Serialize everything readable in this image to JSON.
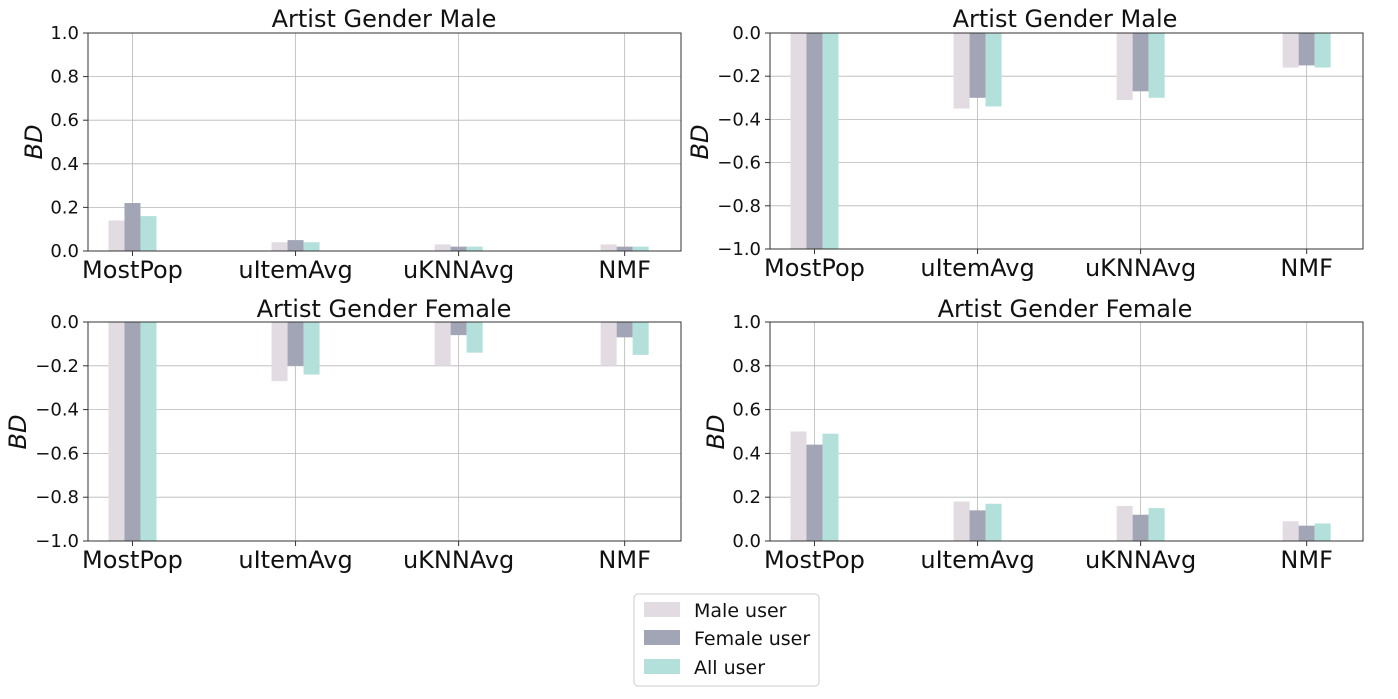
{
  "colors": {
    "male_user": "#e2dbe2",
    "female_user": "#a2a5b5",
    "all_user": "#b3e0da",
    "grid": "#b8b8b8",
    "axes": "#333333"
  },
  "legend": {
    "placement": "bottom-center",
    "entries": [
      "Male user",
      "Female user",
      "All user"
    ]
  },
  "chart_data": [
    {
      "type": "bar",
      "title": "Artist Gender Male",
      "ylabel": "BD",
      "ylim": [
        0,
        1.0
      ],
      "yticks": [
        "0.0",
        "0.2",
        "0.4",
        "0.6",
        "0.8",
        "1.0"
      ],
      "grid": true,
      "categories": [
        "MostPop",
        "uItemAvg",
        "uKNNAvg",
        "NMF"
      ],
      "series": [
        {
          "name": "Male user",
          "values": [
            0.14,
            0.04,
            0.03,
            0.03
          ]
        },
        {
          "name": "Female user",
          "values": [
            0.22,
            0.05,
            0.02,
            0.02
          ]
        },
        {
          "name": "All user",
          "values": [
            0.16,
            0.04,
            0.02,
            0.02
          ]
        }
      ]
    },
    {
      "type": "bar",
      "title": "Artist Gender Male",
      "ylabel": "BD",
      "ylim": [
        -1.0,
        0.0
      ],
      "yticks": [
        "−1.0",
        "−0.8",
        "−0.6",
        "−0.4",
        "−0.2",
        "0.0"
      ],
      "grid": true,
      "categories": [
        "MostPop",
        "uItemAvg",
        "uKNNAvg",
        "NMF"
      ],
      "series": [
        {
          "name": "Male user",
          "values": [
            -1.0,
            -0.35,
            -0.31,
            -0.16
          ]
        },
        {
          "name": "Female user",
          "values": [
            -1.0,
            -0.3,
            -0.27,
            -0.15
          ]
        },
        {
          "name": "All user",
          "values": [
            -1.0,
            -0.34,
            -0.3,
            -0.16
          ]
        }
      ]
    },
    {
      "type": "bar",
      "title": "Artist Gender Female",
      "ylabel": "BD",
      "ylim": [
        -1.0,
        0.0
      ],
      "yticks": [
        "−1.0",
        "−0.8",
        "−0.6",
        "−0.4",
        "−0.2",
        "0.0"
      ],
      "grid": true,
      "categories": [
        "MostPop",
        "uItemAvg",
        "uKNNAvg",
        "NMF"
      ],
      "series": [
        {
          "name": "Male user",
          "values": [
            -1.0,
            -0.27,
            -0.2,
            -0.2
          ]
        },
        {
          "name": "Female user",
          "values": [
            -1.0,
            -0.2,
            -0.06,
            -0.07
          ]
        },
        {
          "name": "All user",
          "values": [
            -1.0,
            -0.24,
            -0.14,
            -0.15
          ]
        }
      ]
    },
    {
      "type": "bar",
      "title": "Artist Gender Female",
      "ylabel": "BD",
      "ylim": [
        0,
        1.0
      ],
      "yticks": [
        "0.0",
        "0.2",
        "0.4",
        "0.6",
        "0.8",
        "1.0"
      ],
      "grid": true,
      "categories": [
        "MostPop",
        "uItemAvg",
        "uKNNAvg",
        "NMF"
      ],
      "series": [
        {
          "name": "Male user",
          "values": [
            0.5,
            0.18,
            0.16,
            0.09
          ]
        },
        {
          "name": "Female user",
          "values": [
            0.44,
            0.14,
            0.12,
            0.07
          ]
        },
        {
          "name": "All user",
          "values": [
            0.49,
            0.17,
            0.15,
            0.08
          ]
        }
      ]
    }
  ]
}
